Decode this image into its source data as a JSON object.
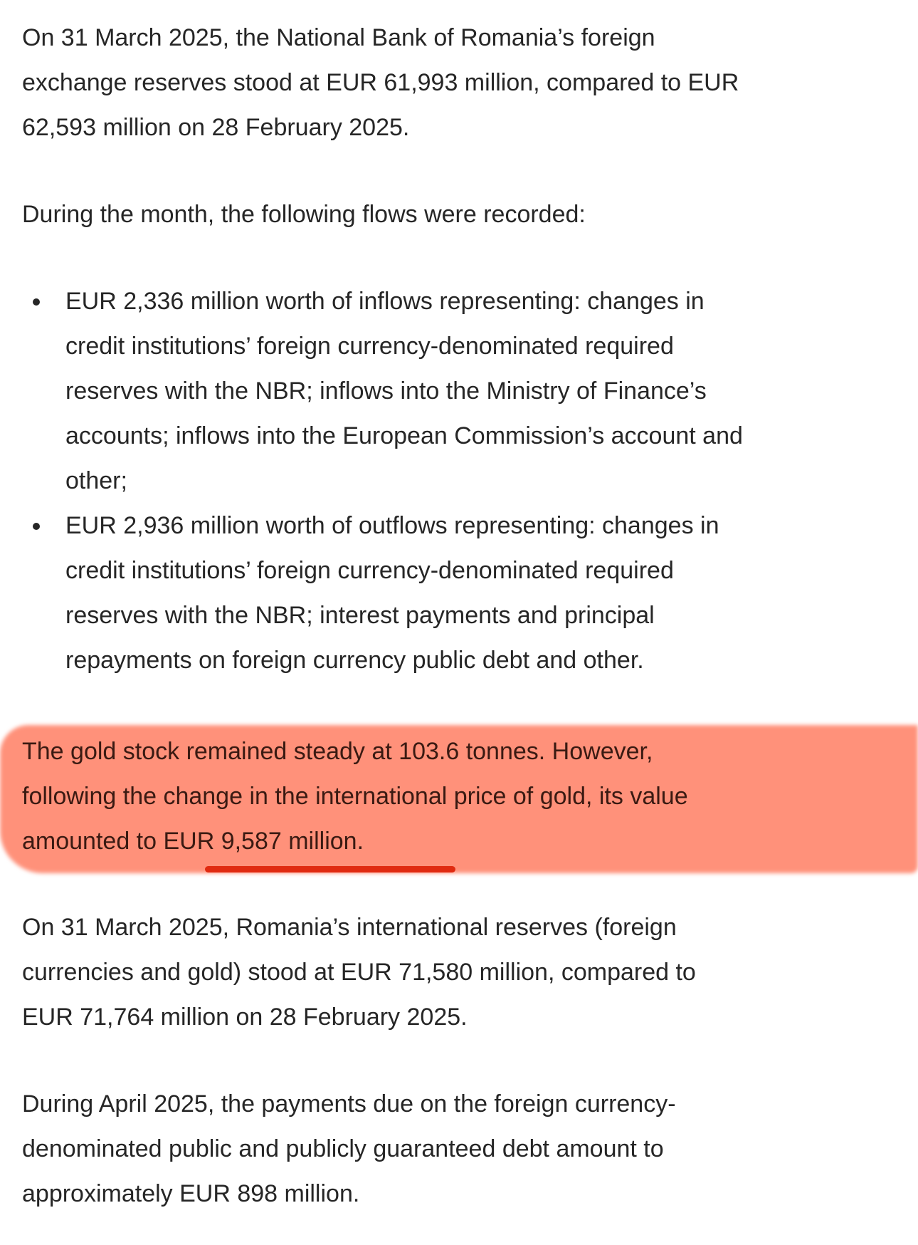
{
  "paragraphs": {
    "p1": [
      "On 31 March 2025, the National Bank of Romania’s foreign",
      "exchange reserves stood at EUR 61,993 million, compared to EUR",
      "62,593 million on 28 February 2025."
    ],
    "p2": [
      "During the month, the following flows were recorded:"
    ],
    "bullet1": [
      "EUR 2,336 million worth of inflows representing: changes in",
      "credit institutions’ foreign currency-denominated required",
      "reserves with the NBR; inflows into the Ministry of Finance’s",
      "accounts; inflows into the European Commission’s account and",
      "other;"
    ],
    "bullet2": [
      "EUR 2,936 million worth of outflows representing: changes in",
      "credit institutions’ foreign currency-denominated required",
      "reserves with the NBR; interest payments and principal",
      "repayments on foreign currency public debt and other."
    ],
    "p3": [
      "The gold stock remained steady at 103.6 tonnes. However,",
      "following the change in the international price of gold, its value",
      "amounted to EUR 9,587 million."
    ],
    "p4": [
      "On 31 March 2025, Romania’s international reserves (foreign",
      "currencies and gold) stood at EUR 71,580 million, compared to",
      "EUR 71,764 million on 28 February 2025."
    ],
    "p5": [
      "During April 2025, the payments due on the foreign currency-",
      "denominated public and publicly guaranteed debt amount to",
      "approximately EUR 898 million."
    ]
  },
  "colors": {
    "highlight": "#ff917a",
    "underline": "#e02a10",
    "text": "#262626"
  }
}
